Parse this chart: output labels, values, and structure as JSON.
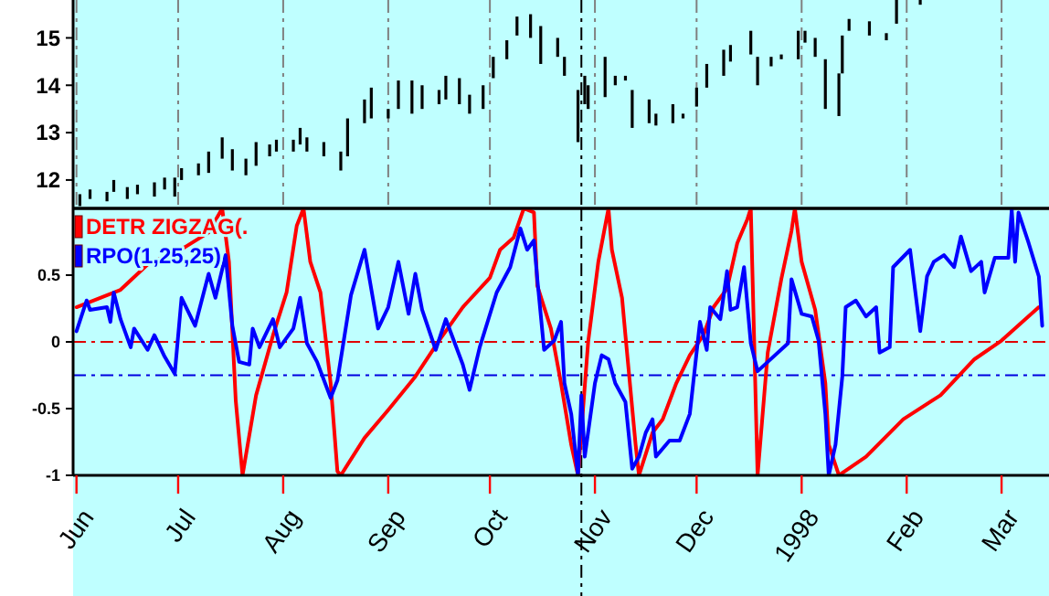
{
  "chart_data": [
    {
      "type": "bar",
      "color": "#000000",
      "grid": "x",
      "tick_labels": "y",
      "xlim": [
        "1997-05-31",
        "1998-03-15"
      ],
      "ylim": [
        11.4,
        15.8
      ],
      "yticks": [
        12,
        13,
        14,
        15
      ],
      "xticks": [
        {
          "value": "1997-06-01",
          "label": null
        },
        {
          "value": "1997-07-01",
          "label": null
        },
        {
          "value": "1997-08-01",
          "label": null
        },
        {
          "value": "1997-09-01",
          "label": null
        },
        {
          "value": "1997-10-01",
          "label": null
        },
        {
          "value": "1997-11-01",
          "label": null
        },
        {
          "value": "1997-12-01",
          "label": null
        },
        {
          "value": "1998-01-01",
          "label": null
        },
        {
          "value": "1998-02-01",
          "label": null
        },
        {
          "value": "1998-03-01",
          "label": null
        }
      ],
      "ref_lines": [
        {
          "axis": "x",
          "value": "1997-10-28",
          "color": "#000000",
          "line_style": "dashed"
        }
      ],
      "x": [
        "1997-06-02",
        "1997-06-05",
        "1997-06-10",
        "1997-06-12",
        "1997-06-16",
        "1997-06-19",
        "1997-06-24",
        "1997-06-27",
        "1997-06-30",
        "1997-07-02",
        "1997-07-07",
        "1997-07-10",
        "1997-07-14",
        "1997-07-17",
        "1997-07-21",
        "1997-07-24",
        "1997-07-28",
        "1997-07-30",
        "1997-08-04",
        "1997-08-06",
        "1997-08-08",
        "1997-08-13",
        "1997-08-18",
        "1997-08-20",
        "1997-08-25",
        "1997-08-27",
        "1997-09-01",
        "1997-09-04",
        "1997-09-08",
        "1997-09-11",
        "1997-09-16",
        "1997-09-18",
        "1997-09-22",
        "1997-09-25",
        "1997-09-29",
        "1997-10-02",
        "1997-10-06",
        "1997-10-09",
        "1997-10-13",
        "1997-10-16",
        "1997-10-21",
        "1997-10-23",
        "1997-10-27",
        "1997-10-29",
        "1997-10-30",
        "1997-11-04",
        "1997-11-07",
        "1997-11-10",
        "1997-11-12",
        "1997-11-17",
        "1997-11-19",
        "1997-11-24",
        "1997-11-27",
        "1997-12-01",
        "1997-12-04",
        "1997-12-09",
        "1997-12-11",
        "1997-12-17",
        "1997-12-19",
        "1997-12-23",
        "1997-12-26",
        "1997-12-31",
        "1998-01-02",
        "1998-01-05",
        "1998-01-08",
        "1998-01-12",
        "1998-01-13",
        "1998-01-15",
        "1998-01-21",
        "1998-01-26",
        "1998-01-29",
        "1998-02-05"
      ],
      "base": [
        11.45,
        11.6,
        11.55,
        11.75,
        11.6,
        11.7,
        11.65,
        11.8,
        11.65,
        12.0,
        12.1,
        12.15,
        12.45,
        12.2,
        12.1,
        12.3,
        12.5,
        12.6,
        12.6,
        12.75,
        12.6,
        12.5,
        12.2,
        12.5,
        13.2,
        13.3,
        13.3,
        13.5,
        13.4,
        13.5,
        13.6,
        13.7,
        13.6,
        13.4,
        13.5,
        14.15,
        14.55,
        15.05,
        15.0,
        14.45,
        14.6,
        14.2,
        12.8,
        13.6,
        13.5,
        13.75,
        14.0,
        14.1,
        13.1,
        13.2,
        13.15,
        13.2,
        13.3,
        13.55,
        13.95,
        14.2,
        14.5,
        14.65,
        14.0,
        14.4,
        14.55,
        14.55,
        14.9,
        14.6,
        13.5,
        13.35,
        14.25,
        15.15,
        15.05,
        14.95,
        15.3,
        15.7
      ],
      "values": [
        0.25,
        0.2,
        0.2,
        0.25,
        0.25,
        0.2,
        0.3,
        0.25,
        0.4,
        0.25,
        0.25,
        0.45,
        0.45,
        0.45,
        0.35,
        0.5,
        0.25,
        0.25,
        0.25,
        0.35,
        0.3,
        0.3,
        0.4,
        0.8,
        0.5,
        0.65,
        0.2,
        0.6,
        0.7,
        0.5,
        0.3,
        0.5,
        0.55,
        0.4,
        0.5,
        0.45,
        0.4,
        0.4,
        0.5,
        0.8,
        0.4,
        0.4,
        1.1,
        0.6,
        0.5,
        0.85,
        0.2,
        0.1,
        0.8,
        0.5,
        0.25,
        0.4,
        0.1,
        0.4,
        0.5,
        0.55,
        0.35,
        0.5,
        0.6,
        0.2,
        0.1,
        0.6,
        0.25,
        0.4,
        1.05,
        0.9,
        0.8,
        0.25,
        0.3,
        0.15,
        0.5,
        0.1
      ]
    },
    {
      "type": "line",
      "legend": "top left",
      "xlim": [
        "1997-05-31",
        "1998-03-15"
      ],
      "ylim": [
        -1,
        1
      ],
      "yticks": [
        -1,
        -0.5,
        0,
        0.5
      ],
      "xticks": [
        {
          "value": "1997-06-01",
          "label": "Jun"
        },
        {
          "value": "1997-07-01",
          "label": "Jul"
        },
        {
          "value": "1997-08-01",
          "label": "Aug"
        },
        {
          "value": "1997-09-01",
          "label": "Sep"
        },
        {
          "value": "1997-10-01",
          "label": "Oct"
        },
        {
          "value": "1997-11-01",
          "label": "Nov"
        },
        {
          "value": "1997-12-01",
          "label": "Dec"
        },
        {
          "value": "1998-01-01",
          "label": "1998"
        },
        {
          "value": "1998-02-01",
          "label": "Feb"
        },
        {
          "value": "1998-03-01",
          "label": "Mar"
        }
      ],
      "ref_lines": [
        {
          "axis": "y",
          "value": 0,
          "color": "#e00000",
          "line_style": "dashed"
        },
        {
          "axis": "y",
          "value": -0.25,
          "color": "#0000e0",
          "line_style": "dashed"
        },
        {
          "axis": "x",
          "value": "1997-10-28",
          "color": "#000000",
          "line_style": "dashed"
        }
      ],
      "series": [
        {
          "name": "DETR ZIGZAG(.",
          "color": "#ff0000",
          "x": [
            "1997-06-01",
            "1997-06-14",
            "1997-06-22",
            "1997-07-03",
            "1997-07-10",
            "1997-07-14",
            "1997-07-16",
            "1997-07-18",
            "1997-07-20",
            "1997-07-24",
            "1997-07-29",
            "1997-08-02",
            "1997-08-05",
            "1997-08-07",
            "1997-08-09",
            "1997-08-12",
            "1997-08-15",
            "1997-08-17",
            "1997-08-18",
            "1997-08-25",
            "1997-09-01",
            "1997-09-09",
            "1997-09-16",
            "1997-09-23",
            "1997-10-01",
            "1997-10-04",
            "1997-10-08",
            "1997-10-11",
            "1997-10-14",
            "1997-10-15",
            "1997-10-19",
            "1997-10-22",
            "1997-10-25",
            "1997-10-27",
            "1997-10-30",
            "1997-11-02",
            "1997-11-05",
            "1997-11-06",
            "1997-11-09",
            "1997-11-10",
            "1997-11-13",
            "1997-11-14",
            "1997-11-18",
            "1997-11-21",
            "1997-11-25",
            "1997-11-29",
            "1997-12-03",
            "1997-12-06",
            "1997-12-10",
            "1997-12-13",
            "1997-12-16",
            "1997-12-17",
            "1997-12-19",
            "1997-12-22",
            "1997-12-26",
            "1997-12-29",
            "1997-12-30",
            "1998-01-01",
            "1998-01-05",
            "1998-01-08",
            "1998-01-09",
            "1998-01-12",
            "1998-01-20",
            "1998-01-31",
            "1998-02-11",
            "1998-02-21",
            "1998-03-01",
            "1998-03-08",
            "1998-03-12"
          ],
          "values": [
            0.26,
            0.39,
            0.58,
            0.71,
            0.82,
            1.0,
            0.6,
            -0.44,
            -1.0,
            -0.4,
            0.05,
            0.37,
            0.87,
            1.0,
            0.6,
            0.37,
            -0.31,
            -0.97,
            -1.0,
            -0.72,
            -0.51,
            -0.26,
            0.01,
            0.26,
            0.48,
            0.69,
            0.78,
            1.0,
            0.97,
            0.42,
            0.1,
            -0.31,
            -0.77,
            -1.0,
            0.0,
            0.6,
            1.0,
            0.69,
            0.33,
            0.05,
            -0.77,
            -1.0,
            -0.68,
            -0.58,
            -0.31,
            -0.1,
            0.05,
            0.26,
            0.4,
            0.74,
            0.92,
            1.0,
            -1.0,
            -0.08,
            0.47,
            0.83,
            1.0,
            0.6,
            0.24,
            -0.31,
            -0.77,
            -1.0,
            -0.86,
            -0.58,
            -0.4,
            -0.13,
            0.01,
            0.17,
            0.26
          ]
        },
        {
          "name": "RPO(1,25,25)",
          "color": "#0000ff",
          "x": [
            "1997-06-01",
            "1997-06-04",
            "1997-06-05",
            "1997-06-10",
            "1997-06-11",
            "1997-06-12",
            "1997-06-14",
            "1997-06-17",
            "1997-06-18",
            "1997-06-22",
            "1997-06-24",
            "1997-06-27",
            "1997-06-30",
            "1997-07-02",
            "1997-07-06",
            "1997-07-10",
            "1997-07-12",
            "1997-07-15",
            "1997-07-17",
            "1997-07-19",
            "1997-07-22",
            "1997-07-23",
            "1997-07-25",
            "1997-07-29",
            "1997-07-31",
            "1997-08-04",
            "1997-08-06",
            "1997-08-08",
            "1997-08-11",
            "1997-08-15",
            "1997-08-17",
            "1997-08-21",
            "1997-08-25",
            "1997-08-29",
            "1997-09-01",
            "1997-09-04",
            "1997-09-07",
            "1997-09-09",
            "1997-09-11",
            "1997-09-15",
            "1997-09-18",
            "1997-09-23",
            "1997-09-25",
            "1997-09-28",
            "1997-10-03",
            "1997-10-07",
            "1997-10-10",
            "1997-10-12",
            "1997-10-14",
            "1997-10-15",
            "1997-10-17",
            "1997-10-20",
            "1997-10-22",
            "1997-10-23",
            "1997-10-25",
            "1997-10-27",
            "1997-10-28",
            "1997-10-29",
            "1997-11-01",
            "1997-11-03",
            "1997-11-05",
            "1997-11-07",
            "1997-11-10",
            "1997-11-12",
            "1997-11-14",
            "1997-11-16",
            "1997-11-18",
            "1997-11-19",
            "1997-11-23",
            "1997-11-26",
            "1997-11-29",
            "1997-12-02",
            "1997-12-04",
            "1997-12-05",
            "1997-12-08",
            "1997-12-10",
            "1997-12-11",
            "1997-12-13",
            "1997-12-15",
            "1997-12-17",
            "1997-12-19",
            "1997-12-22",
            "1997-12-28",
            "1997-12-29",
            "1998-01-01",
            "1998-01-04",
            "1998-01-06",
            "1998-01-08",
            "1998-01-09",
            "1998-01-11",
            "1998-01-13",
            "1998-01-14",
            "1998-01-17",
            "1998-01-20",
            "1998-01-23",
            "1998-01-24",
            "1998-01-27",
            "1998-01-28",
            "1998-02-02",
            "1998-02-05",
            "1998-02-07",
            "1998-02-09",
            "1998-02-12",
            "1998-02-15",
            "1998-02-17",
            "1998-02-20",
            "1998-02-23",
            "1998-02-24",
            "1998-02-27",
            "1998-03-03",
            "1998-03-04",
            "1998-03-05",
            "1998-03-06",
            "1998-03-09",
            "1998-03-12",
            "1998-03-13"
          ],
          "values": [
            0.08,
            0.31,
            0.24,
            0.26,
            0.15,
            0.37,
            0.17,
            -0.04,
            0.1,
            -0.06,
            0.05,
            -0.11,
            -0.24,
            0.33,
            0.12,
            0.51,
            0.33,
            0.65,
            0.12,
            -0.15,
            -0.17,
            0.1,
            -0.04,
            0.17,
            -0.04,
            0.1,
            0.33,
            -0.01,
            -0.15,
            -0.42,
            -0.29,
            0.35,
            0.69,
            0.1,
            0.26,
            0.6,
            0.21,
            0.51,
            0.24,
            -0.06,
            0.17,
            -0.17,
            -0.36,
            -0.04,
            0.37,
            0.56,
            0.85,
            0.69,
            0.76,
            0.47,
            -0.06,
            0.01,
            0.15,
            -0.31,
            -0.54,
            -1.0,
            -0.4,
            -0.86,
            -0.31,
            -0.1,
            -0.13,
            -0.31,
            -0.45,
            -0.95,
            -0.86,
            -0.68,
            -0.58,
            -0.86,
            -0.74,
            -0.74,
            -0.54,
            0.15,
            -0.06,
            0.26,
            0.17,
            0.53,
            0.24,
            0.26,
            0.56,
            -0.01,
            -0.22,
            -0.15,
            -0.01,
            0.47,
            0.21,
            0.19,
            0.01,
            -0.54,
            -1.0,
            -0.77,
            -0.26,
            0.26,
            0.31,
            0.19,
            0.26,
            -0.08,
            -0.04,
            0.56,
            0.69,
            0.08,
            0.49,
            0.6,
            0.65,
            0.56,
            0.79,
            0.53,
            0.6,
            0.37,
            0.63,
            0.63,
            0.99,
            0.6,
            0.97,
            0.74,
            0.49,
            0.12
          ]
        }
      ]
    }
  ]
}
